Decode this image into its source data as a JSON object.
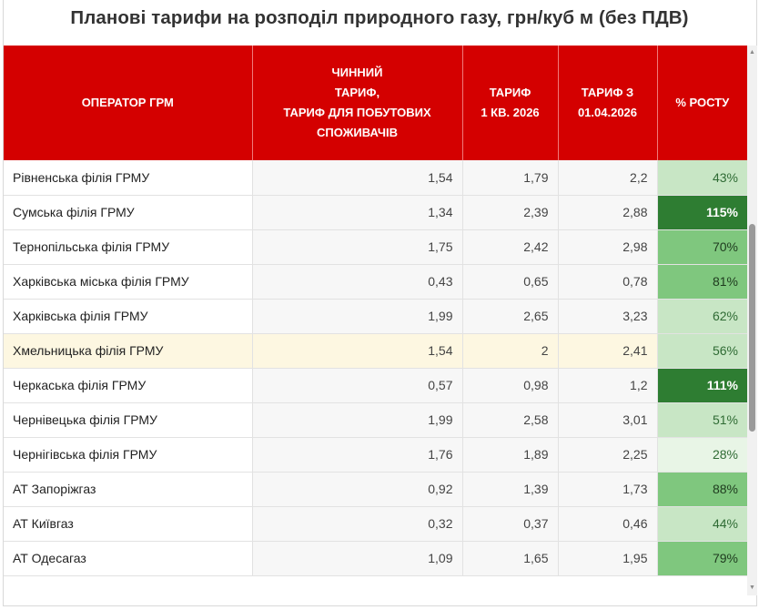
{
  "title": "Планові тарифи на розподіл природного газу, грн/куб м (без ПДВ)",
  "headers": {
    "operator": "ОПЕРАТОР ГРМ",
    "current": [
      "ЧИННИЙ",
      "ТАРИФ,",
      "ТАРИФ ДЛЯ ПОБУТОВИХ",
      "СПОЖИВАЧІВ"
    ],
    "q1": [
      "ТАРИФ",
      "1 КВ. 2026"
    ],
    "apr": [
      "ТАРИФ З",
      "01.04.2026"
    ],
    "growth": "% РОСТУ"
  },
  "colors": {
    "header_bg": "#d40000",
    "growth_very_light": "#e8f5e6",
    "growth_light": "#c8e6c5",
    "growth_mid": "#7fc77e",
    "growth_dark": "#2e7d32",
    "highlight_row": "#fdf7e1"
  },
  "rows": [
    {
      "operator": "Рівненська філія ГРМУ",
      "current": "1,54",
      "q1": "1,79",
      "apr": "2,2",
      "growth": "43%",
      "level": "light"
    },
    {
      "operator": "Сумська філія ГРМУ",
      "current": "1,34",
      "q1": "2,39",
      "apr": "2,88",
      "growth": "115%",
      "level": "dark"
    },
    {
      "operator": "Тернопільська філія ГРМУ",
      "current": "1,75",
      "q1": "2,42",
      "apr": "2,98",
      "growth": "70%",
      "level": "mid"
    },
    {
      "operator": "Харківська міська філія ГРМУ",
      "current": "0,43",
      "q1": "0,65",
      "apr": "0,78",
      "growth": "81%",
      "level": "mid"
    },
    {
      "operator": "Харківська філія ГРМУ",
      "current": "1,99",
      "q1": "2,65",
      "apr": "3,23",
      "growth": "62%",
      "level": "light"
    },
    {
      "operator": "Хмельницька філія ГРМУ",
      "current": "1,54",
      "q1": "2",
      "apr": "2,41",
      "growth": "56%",
      "level": "light",
      "highlight": true
    },
    {
      "operator": "Черкаська філія ГРМУ",
      "current": "0,57",
      "q1": "0,98",
      "apr": "1,2",
      "growth": "111%",
      "level": "dark"
    },
    {
      "operator": "Чернівецька філія ГРМУ",
      "current": "1,99",
      "q1": "2,58",
      "apr": "3,01",
      "growth": "51%",
      "level": "light"
    },
    {
      "operator": "Чернігівська філія ГРМУ",
      "current": "1,76",
      "q1": "1,89",
      "apr": "2,25",
      "growth": "28%",
      "level": "very_light"
    },
    {
      "operator": "АТ Запоріжгаз",
      "current": "0,92",
      "q1": "1,39",
      "apr": "1,73",
      "growth": "88%",
      "level": "mid"
    },
    {
      "operator": "АТ Київгаз",
      "current": "0,32",
      "q1": "0,37",
      "apr": "0,46",
      "growth": "44%",
      "level": "light"
    },
    {
      "operator": "АТ Одесагаз",
      "current": "1,09",
      "q1": "1,65",
      "apr": "1,95",
      "growth": "79%",
      "level": "mid"
    }
  ],
  "scrollbar": {
    "up_icon": "triangle-up-icon",
    "down_icon": "triangle-down-icon"
  }
}
